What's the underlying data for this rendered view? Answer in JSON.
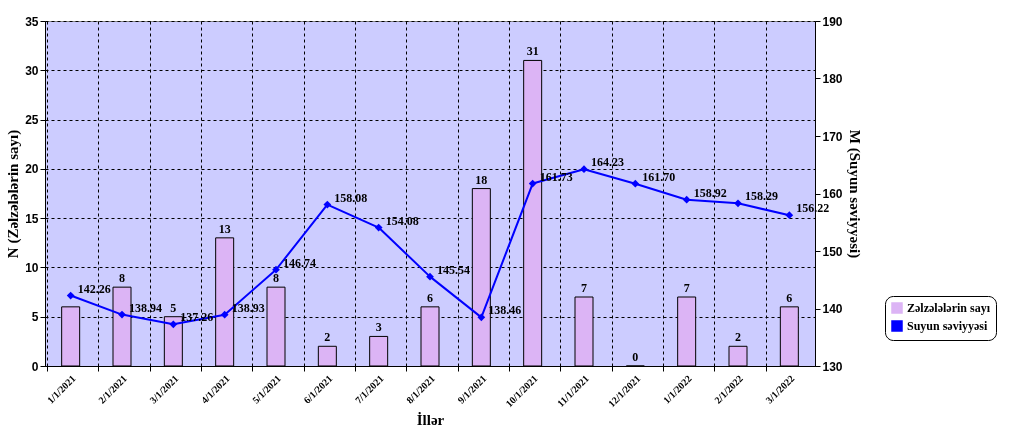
{
  "chart_data": {
    "type": "bar",
    "xlabel": "İllər",
    "ylabel": "N (Zəlzələlərin sayı)",
    "y2label": "M (Suyun səviyyəsi)",
    "categories": [
      "1/1/2021",
      "2/1/2021",
      "3/1/2021",
      "4/1/2021",
      "5/1/2021",
      "6/1/2021",
      "7/1/2021",
      "8/1/2021",
      "9/1/2021",
      "10/1/2021",
      "11/1/2021",
      "12/1/2021",
      "1/1/2022",
      "2/1/2022",
      "3/1/2022"
    ],
    "series": [
      {
        "name": "Zəlzələlərin sayı",
        "color": "#dcb4f5",
        "values": [
          6,
          8,
          5,
          13,
          8,
          2,
          3,
          6,
          18,
          31,
          7,
          0,
          7,
          2,
          6
        ],
        "value_labels": [
          null,
          "8",
          "5",
          "13",
          "8",
          "2",
          "3",
          "6",
          "18",
          "31",
          "7",
          "0",
          "7",
          "2",
          "6"
        ]
      },
      {
        "name": "Suyun səviyyəsi",
        "type": "line",
        "axis": "y2",
        "color": "#0000ff",
        "marker": "diamond",
        "values": [
          142.26,
          138.94,
          137.26,
          138.93,
          146.74,
          158.08,
          154.08,
          145.54,
          138.46,
          161.73,
          164.23,
          161.7,
          158.92,
          158.29,
          156.22
        ],
        "value_labels": [
          "142.26",
          "138.94",
          "137.26",
          "138.93",
          "146.74",
          "158.08",
          "154.08",
          "145.54",
          "138.46",
          "161.73",
          "164.23",
          "161.70",
          "158.92",
          "158.29",
          "156.22"
        ]
      }
    ],
    "ylim": [
      0,
      35
    ],
    "yticks": [
      0,
      5,
      10,
      15,
      20,
      25,
      30,
      35
    ],
    "y2lim": [
      130,
      190
    ],
    "y2ticks": [
      130,
      140,
      150,
      160,
      170,
      180,
      190
    ],
    "grid": true,
    "legend": "bottom right"
  }
}
